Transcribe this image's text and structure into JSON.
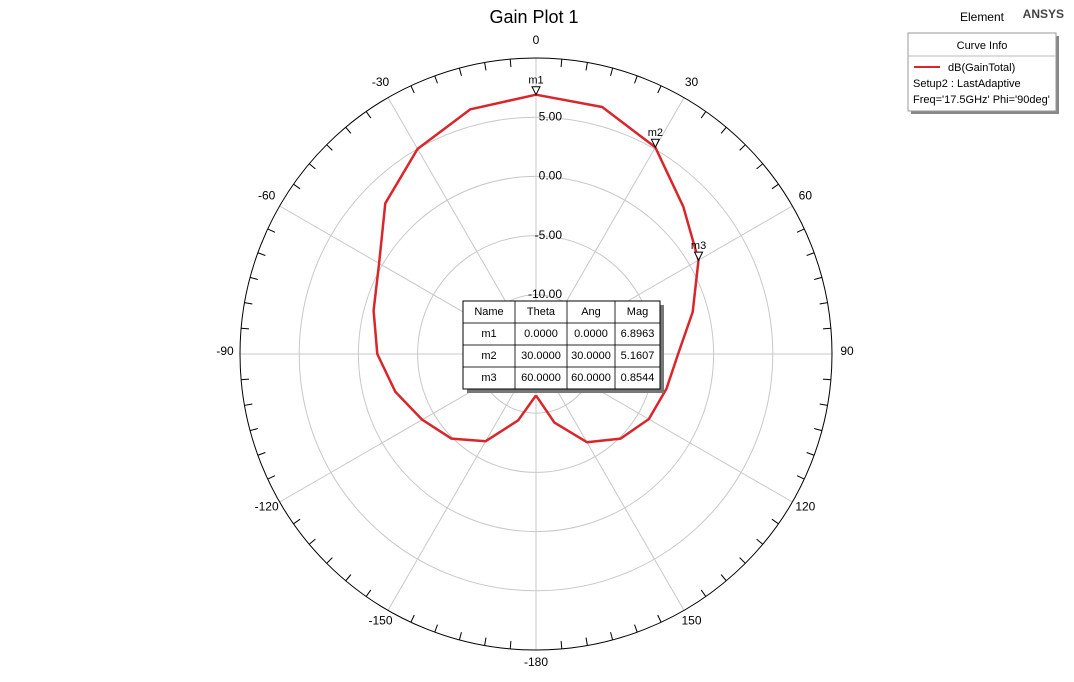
{
  "chart_data": {
    "type": "polar",
    "title": "Gain Plot 1",
    "header_left": "Element",
    "header_right": "ANSYS",
    "rlim": [
      -15,
      10
    ],
    "rticks": [
      {
        "value": -10,
        "label": "-10.00"
      },
      {
        "value": -5,
        "label": "-5.00"
      },
      {
        "value": 0,
        "label": "0.00"
      },
      {
        "value": 5,
        "label": "5.00"
      }
    ],
    "thetaticks": [
      0,
      30,
      60,
      90,
      120,
      150,
      -180,
      -150,
      -120,
      -90,
      -60,
      -30
    ],
    "grid": true,
    "legend": {
      "title": "Curve Info",
      "lines": [
        "Setup2 : LastAdaptive",
        "Freq='17.5GHz' Phi='90deg'"
      ]
    },
    "series": [
      {
        "name": "dB(GainTotal)",
        "color": "#d9262b",
        "x": [
          -180,
          -165,
          -150,
          -135,
          -120,
          -105,
          -90,
          -75,
          -60,
          -45,
          -30,
          -15,
          0,
          15,
          30,
          45,
          60,
          75,
          90,
          105,
          120,
          135,
          150,
          165,
          180
        ],
        "values": [
          -11.5,
          -9.2,
          -6.5,
          -4.9,
          -3.9,
          -2.7,
          -1.6,
          -0.8,
          0.3,
          3.0,
          5.0,
          6.4,
          6.9,
          6.6,
          5.16,
          2.6,
          0.85,
          -1.3,
          -3.0,
          -3.6,
          -4.0,
          -4.9,
          -6.4,
          -9.0,
          -11.5
        ]
      }
    ],
    "marker_table": {
      "columns": [
        "Name",
        "Theta",
        "Ang",
        "Mag"
      ],
      "rows": [
        [
          "m1",
          "0.0000",
          "0.0000",
          "6.8963"
        ],
        [
          "m2",
          "30.0000",
          "30.0000",
          "5.1607"
        ],
        [
          "m3",
          "60.0000",
          "60.0000",
          "0.8544"
        ]
      ]
    }
  }
}
